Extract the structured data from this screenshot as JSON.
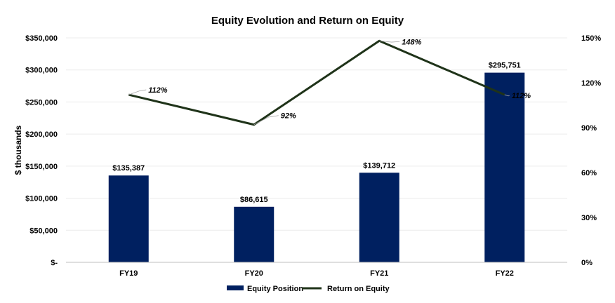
{
  "chart_data": {
    "type": "bar",
    "title": "Equity Evolution and Return on Equity",
    "ylabel": "$ thousands",
    "categories": [
      "FY19",
      "FY20",
      "FY21",
      "FY22"
    ],
    "series": [
      {
        "name": "Equity Position",
        "type": "bar",
        "axis": "left",
        "color": "#002060",
        "values": [
          135387,
          86615,
          139712,
          295751
        ],
        "labels": [
          "$135,387",
          "$86,615",
          "$139,712",
          "$295,751"
        ]
      },
      {
        "name": "Return on Equity",
        "type": "line",
        "axis": "right",
        "color": "#1f3319",
        "values": [
          112,
          92,
          148,
          112
        ],
        "labels": [
          "112%",
          "92%",
          "148%",
          "112%"
        ]
      }
    ],
    "y_left": {
      "min": 0,
      "max": 350000,
      "ticks": [
        "$-",
        "$50,000",
        "$100,000",
        "$150,000",
        "$200,000",
        "$250,000",
        "$300,000",
        "$350,000"
      ]
    },
    "y_right": {
      "min": 0,
      "max": 150,
      "ticks": [
        "0%",
        "30%",
        "60%",
        "90%",
        "120%",
        "150%"
      ]
    },
    "grid": true,
    "legend": "bottom"
  }
}
